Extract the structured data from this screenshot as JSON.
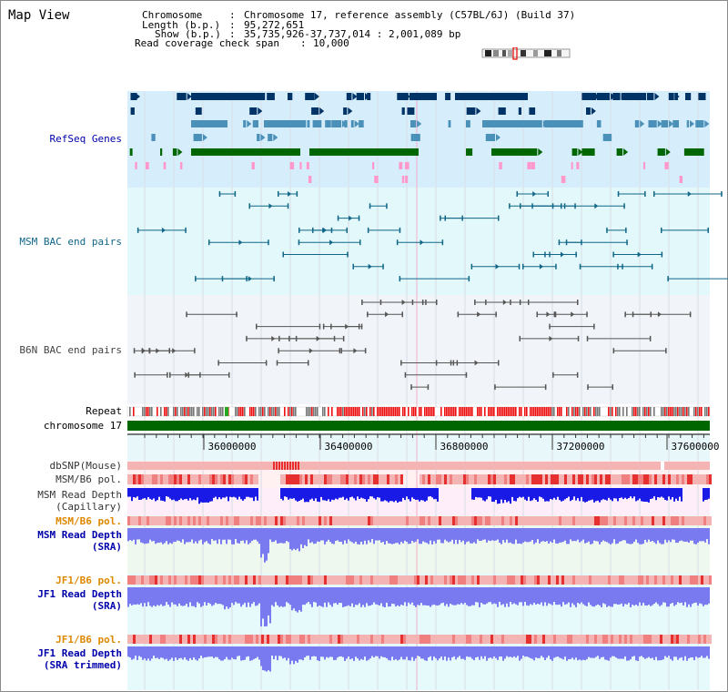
{
  "title": "Map View",
  "info": {
    "chromosome_key": "Chromosome",
    "chromosome_val": "Chromosome 17, reference assembly (C57BL/6J) (Build 37)",
    "length_key": "Length (b.p.)",
    "length_val": "95,272,651",
    "show_key": "Show (b.p.)",
    "show_val": "35,735,926-37,737,014 : 2,001,089 bp",
    "span_key": "Read coverage check span",
    "span_val": "10,000"
  },
  "tracks": {
    "refseq": {
      "label": "RefSeq Genes",
      "color": "#0000aa"
    },
    "msm_bac": {
      "label": "MSM BAC end pairs",
      "color": "#116688"
    },
    "b6n_bac": {
      "label": "B6N BAC end pairs",
      "color": "#444444"
    },
    "repeat": {
      "label": "Repeat"
    },
    "chromosome": {
      "label": "chromosome 17"
    },
    "dbsnp": {
      "label": "dbSNP(Mouse)"
    },
    "msm_b6_pol_1": {
      "label": "MSM/B6 pol."
    },
    "msm_depth_cap": {
      "label1": "MSM Read Depth",
      "label2": "(Capillary)"
    },
    "msm_b6_pol_2": {
      "label": "MSM/B6 pol.",
      "color": "#dd8800"
    },
    "msm_depth_sra": {
      "label1": "MSM Read Depth",
      "label2": "(SRA)",
      "color": "#0000aa"
    },
    "jf1_b6_pol_1": {
      "label": "JF1/B6 pol.",
      "color": "#dd8800"
    },
    "jf1_depth_sra": {
      "label1": "JF1 Read Depth",
      "label2": "(SRA)",
      "color": "#0000aa"
    },
    "jf1_b6_pol_2": {
      "label": "JF1/B6 pol.",
      "color": "#dd8800"
    },
    "jf1_depth_trim": {
      "label1": "JF1 Read Depth",
      "label2": "(SRA trimmed)",
      "color": "#0000aa"
    }
  },
  "ruler_labels": [
    "36000000",
    "36400000",
    "36800000",
    "37200000",
    "37600000"
  ],
  "colors": {
    "refseq_dark": "#003366",
    "refseq_mid": "#4a90b8",
    "refseq_green": "#006600",
    "refseq_pink": "#ff99cc",
    "bac_msm": "#116688",
    "bac_b6n": "#555555",
    "repeat_red": "#ee1111",
    "repeat_gray": "#777777",
    "chrom_green": "#006600",
    "depth_blue": "#1a1ae6",
    "depth_light": "#7a7af0",
    "pol_pink": "#f4b4b4",
    "pol_red": "#e63030"
  }
}
